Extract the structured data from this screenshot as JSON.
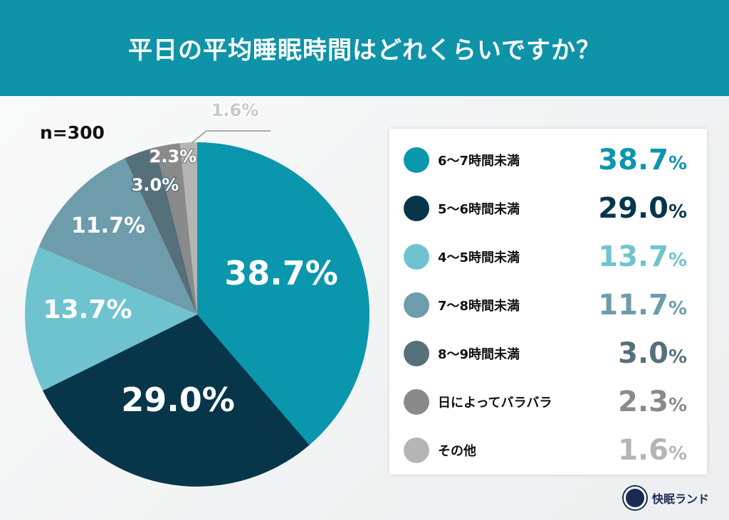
{
  "title": "平日の平均睡眠時間はどれくらいですか？",
  "sample": "n=300",
  "logo_text": "快眠ランド",
  "chart_data": {
    "type": "pie",
    "title": "平日の平均睡眠時間はどれくらいですか？",
    "start": "top",
    "direction": "clockwise",
    "legend_position": "right",
    "slices": [
      {
        "label": "6〜7時間未満",
        "value": 38.7,
        "color": "#0a97ad"
      },
      {
        "label": "5〜6時間未満",
        "value": 29.0,
        "color": "#07364a"
      },
      {
        "label": "4〜5時間未満",
        "value": 13.7,
        "color": "#6fc3cf"
      },
      {
        "label": "7〜8時間未満",
        "value": 11.7,
        "color": "#6e9caa"
      },
      {
        "label": "8〜9時間未満",
        "value": 3.0,
        "color": "#55707a"
      },
      {
        "label": "日によってバラバラ",
        "value": 2.3,
        "color": "#8a8a8a"
      },
      {
        "label": "その他",
        "value": 1.6,
        "color": "#b5b5b5"
      }
    ]
  }
}
